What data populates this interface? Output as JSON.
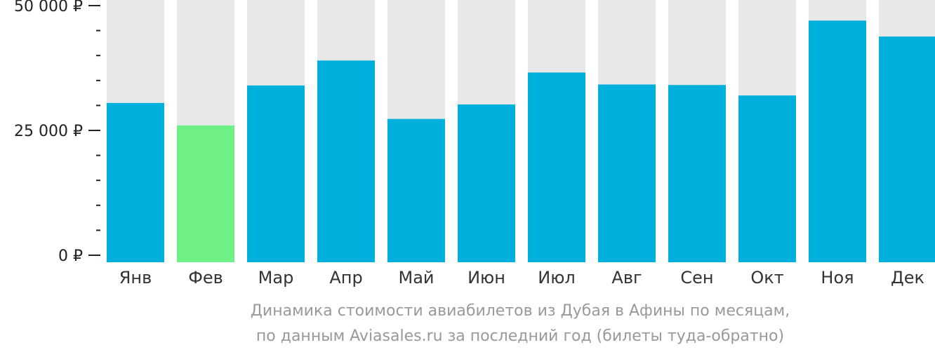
{
  "chart_data": {
    "type": "bar",
    "categories": [
      "Янв",
      "Фев",
      "Мар",
      "Апр",
      "Май",
      "Июн",
      "Июл",
      "Авг",
      "Сен",
      "Окт",
      "Ноя",
      "Дек"
    ],
    "values": [
      30500,
      26000,
      34000,
      39000,
      27300,
      30200,
      36600,
      34200,
      34100,
      32000,
      47000,
      43800
    ],
    "highlight_index": 1,
    "ylim": [
      0,
      52000
    ],
    "y_ticks": [
      {
        "value": 50000,
        "label": "50 000 ₽"
      },
      {
        "value": 25000,
        "label": "25 000 ₽"
      },
      {
        "value": 0,
        "label": "0 ₽"
      }
    ],
    "y_minor_step": 5000,
    "grid": false,
    "title": "",
    "xlabel": "",
    "ylabel": ""
  },
  "caption": {
    "line1": "Динамика стоимости авиабилетов из Дубая в Афины по месяцам,",
    "line2": "по данным Aviasales.ru за последний год (билеты туда-обратно)"
  },
  "colors": {
    "bar": "#00b0dc",
    "bar_highlight": "#6ef086",
    "bar_background": "#e8e8e8",
    "axis": "#222222"
  }
}
